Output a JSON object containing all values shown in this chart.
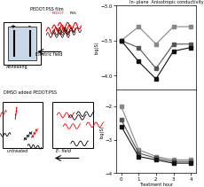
{
  "top_graph": {
    "x": [
      0,
      1,
      2,
      3,
      4
    ],
    "series1": [
      -3.5,
      -3.3,
      -3.55,
      -3.3,
      -3.3
    ],
    "series2": [
      -3.5,
      -3.6,
      -3.9,
      -3.55,
      -3.55
    ],
    "series3": [
      -3.5,
      -3.8,
      -4.05,
      -3.65,
      -3.6
    ],
    "xlabel": "Treatment hour",
    "ylabel": "log(S)",
    "ylim": [
      -4.2,
      -3.1
    ],
    "yticks": [
      -4.0,
      -3.5,
      -3.0
    ],
    "xticks": [
      0,
      1,
      2,
      3,
      4
    ],
    "colors": [
      "#888888",
      "#555555",
      "#111111"
    ]
  },
  "bottom_graph": {
    "x": [
      0,
      1,
      2,
      3,
      4
    ],
    "series1": [
      -2.0,
      -3.3,
      -3.5,
      -3.6,
      -3.6
    ],
    "series2": [
      -2.4,
      -3.4,
      -3.55,
      -3.65,
      -3.65
    ],
    "series3": [
      -2.6,
      -3.5,
      -3.6,
      -3.7,
      -3.7
    ],
    "xlabel": "Treatment hour",
    "ylabel": "log(S)",
    "ylim": [
      -4.0,
      -1.5
    ],
    "yticks": [
      -4.0,
      -3.0,
      -2.0
    ],
    "xticks": [
      0,
      1,
      2,
      3,
      4
    ],
    "colors": [
      "#888888",
      "#555555",
      "#111111"
    ]
  },
  "title": "In- plane  Anisotropic conductivity",
  "bg_color": "#ffffff",
  "graph_marker": "s",
  "graph_linewidth": 0.8,
  "graph_markersize": 3
}
